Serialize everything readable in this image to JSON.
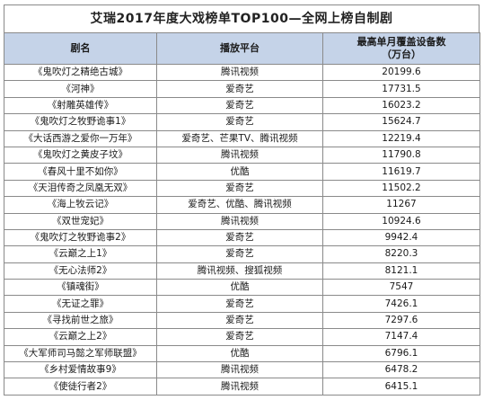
{
  "title": "艾瑞2017年度大戏榜单TOP100—全网上榜自制剧",
  "headers": {
    "name": "剧名",
    "platform": "播放平台",
    "devices_line1": "最高单月覆盖设备数",
    "devices_line2": "（万台）"
  },
  "rows": [
    {
      "name": "《鬼吹灯之精绝古城》",
      "platform": "腾讯视频",
      "devices": "20199.6"
    },
    {
      "name": "《河神》",
      "platform": "爱奇艺",
      "devices": "17731.5"
    },
    {
      "name": "《射雕英雄传》",
      "platform": "爱奇艺",
      "devices": "16023.2"
    },
    {
      "name": "《鬼吹灯之牧野诡事1》",
      "platform": "爱奇艺",
      "devices": "15624.7"
    },
    {
      "name": "《大话西游之爱你一万年》",
      "platform": "爱奇艺、芒果TV、腾讯视频",
      "devices": "12219.4"
    },
    {
      "name": "《鬼吹灯之黄皮子坟》",
      "platform": "腾讯视频",
      "devices": "11790.8"
    },
    {
      "name": "《春风十里不如你》",
      "platform": "优酷",
      "devices": "11619.7"
    },
    {
      "name": "《天泪传奇之凤凰无双》",
      "platform": "爱奇艺",
      "devices": "11502.2"
    },
    {
      "name": "《海上牧云记》",
      "platform": "爱奇艺、优酷、腾讯视频",
      "devices": "11267"
    },
    {
      "name": "《双世宠妃》",
      "platform": "腾讯视频",
      "devices": "10924.6"
    },
    {
      "name": "《鬼吹灯之牧野诡事2》",
      "platform": "爱奇艺",
      "devices": "9942.4"
    },
    {
      "name": "《云巅之上1》",
      "platform": "爱奇艺",
      "devices": "8220.3"
    },
    {
      "name": "《无心法师2》",
      "platform": "腾讯视频、搜狐视频",
      "devices": "8121.1"
    },
    {
      "name": "《镇魂街》",
      "platform": "优酷",
      "devices": "7547"
    },
    {
      "name": "《无证之罪》",
      "platform": "爱奇艺",
      "devices": "7426.1"
    },
    {
      "name": "《寻找前世之旅》",
      "platform": "爱奇艺",
      "devices": "7297.6"
    },
    {
      "name": "《云巅之上2》",
      "platform": "爱奇艺",
      "devices": "7147.4"
    },
    {
      "name": "《大军师司马懿之军师联盟》",
      "platform": "优酷",
      "devices": "6796.1"
    },
    {
      "name": "《乡村爱情故事9》",
      "platform": "腾讯视频",
      "devices": "6478.2"
    },
    {
      "name": "《使徒行者2》",
      "platform": "腾讯视频",
      "devices": "6415.1"
    }
  ]
}
